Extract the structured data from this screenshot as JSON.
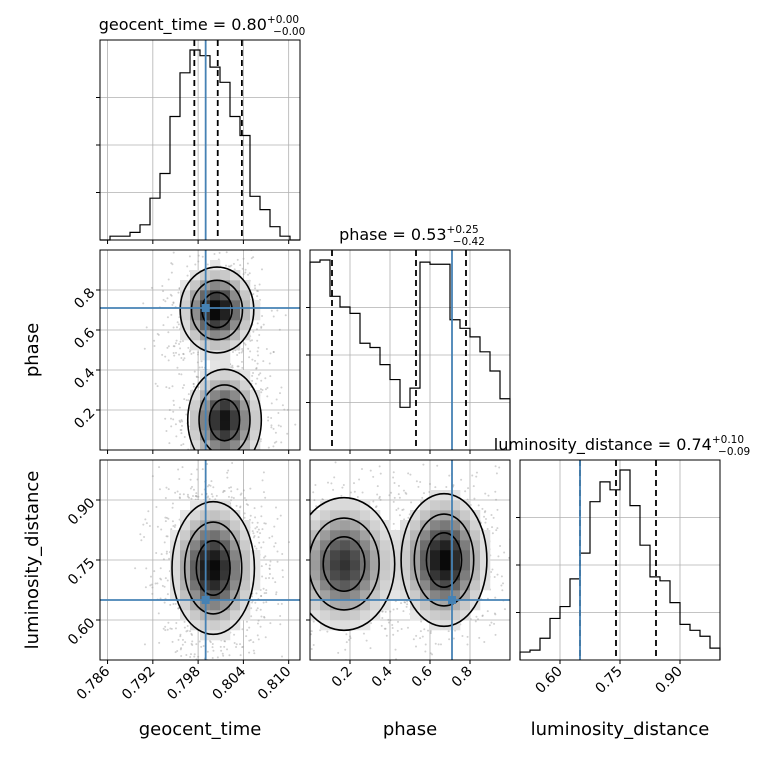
{
  "figure": {
    "parameters": [
      "geocent_time",
      "phase",
      "luminosity_distance"
    ]
  },
  "chart_data": {
    "type": "corner",
    "colors": {
      "truth": "#4682b4",
      "hist": "#000000",
      "grid": "#b0b0b0"
    },
    "parameters": [
      {
        "name": "geocent_time",
        "xlabel": "geocent_time",
        "title": "geocent_time = 0.80",
        "title_plus": "+0.00",
        "title_minus": "−0.00",
        "range": [
          0.785,
          0.8115
        ],
        "ticks": [
          0.786,
          0.792,
          0.798,
          0.804,
          0.81
        ],
        "tick_labels": [
          "0.786",
          "0.792",
          "0.798",
          "0.804",
          "0.810"
        ],
        "truth": 0.799,
        "quantiles": [
          0.7975,
          0.8006,
          0.8038
        ],
        "hist": {
          "edges_start": 0.785,
          "bin_width": 0.001325,
          "counts": [
            0,
            0.02,
            0.02,
            0.04,
            0.08,
            0.22,
            0.35,
            0.65,
            0.88,
            1.0,
            0.97,
            0.91,
            0.83,
            0.65,
            0.55,
            0.23,
            0.16,
            0.07,
            0.02,
            0
          ]
        }
      },
      {
        "name": "phase",
        "ylabel": "phase",
        "xlabel": "phase",
        "title": "phase = 0.53",
        "title_plus": "+0.25",
        "title_minus": "−0.42",
        "range": [
          0.0,
          1.0
        ],
        "ticks": [
          0.2,
          0.4,
          0.6,
          0.8
        ],
        "tick_labels": [
          "0.2",
          "0.4",
          "0.6",
          "0.8"
        ],
        "truth": 0.71,
        "quantiles": [
          0.11,
          0.53,
          0.78
        ],
        "hist": {
          "edges_start": 0.0,
          "bin_width": 0.05,
          "counts": [
            0.88,
            0.89,
            0.72,
            0.67,
            0.64,
            0.5,
            0.48,
            0.4,
            0.33,
            0.2,
            0.29,
            0.88,
            0.87,
            0.87,
            0.61,
            0.57,
            0.53,
            0.46,
            0.37,
            0.24
          ]
        }
      },
      {
        "name": "luminosity_distance",
        "ylabel": "luminosity_distance",
        "xlabel": "luminosity_distance",
        "title": "luminosity_distance = 0.74",
        "title_plus": "+0.10",
        "title_minus": "−0.09",
        "range": [
          0.5,
          1.0
        ],
        "ticks": [
          0.6,
          0.75,
          0.9
        ],
        "tick_labels": [
          "0.60",
          "0.75",
          "0.90"
        ],
        "truth": 0.65,
        "quantiles": [
          0.65,
          0.74,
          0.84
        ],
        "hist": {
          "edges_start": 0.5,
          "bin_width": 0.025,
          "counts": [
            0.04,
            0.05,
            0.11,
            0.21,
            0.27,
            0.41,
            0.54,
            0.8,
            0.9,
            0.86,
            0.96,
            0.78,
            0.58,
            0.42,
            0.4,
            0.29,
            0.18,
            0.15,
            0.12,
            0.06
          ]
        }
      }
    ],
    "pairs": [
      {
        "x": "geocent_time",
        "y": "phase",
        "contour_regions": [
          {
            "cx": 0.8005,
            "cy": 0.7,
            "sx": 0.0025,
            "sy": 0.11,
            "weight": 1.0
          },
          {
            "cx": 0.8015,
            "cy": 0.15,
            "sx": 0.0025,
            "sy": 0.13,
            "weight": 0.95
          }
        ]
      },
      {
        "x": "geocent_time",
        "y": "luminosity_distance",
        "contour_regions": [
          {
            "cx": 0.8,
            "cy": 0.73,
            "sx": 0.0028,
            "sy": 0.085,
            "weight": 1.0
          }
        ]
      },
      {
        "x": "phase",
        "y": "luminosity_distance",
        "contour_regions": [
          {
            "cx": 0.17,
            "cy": 0.74,
            "sx": 0.13,
            "sy": 0.085,
            "weight": 0.85
          },
          {
            "cx": 0.67,
            "cy": 0.75,
            "sx": 0.11,
            "sy": 0.085,
            "weight": 1.0
          }
        ]
      }
    ],
    "grid": true,
    "contour_levels": [
      "1σ",
      "1.5σ",
      "2σ"
    ]
  }
}
